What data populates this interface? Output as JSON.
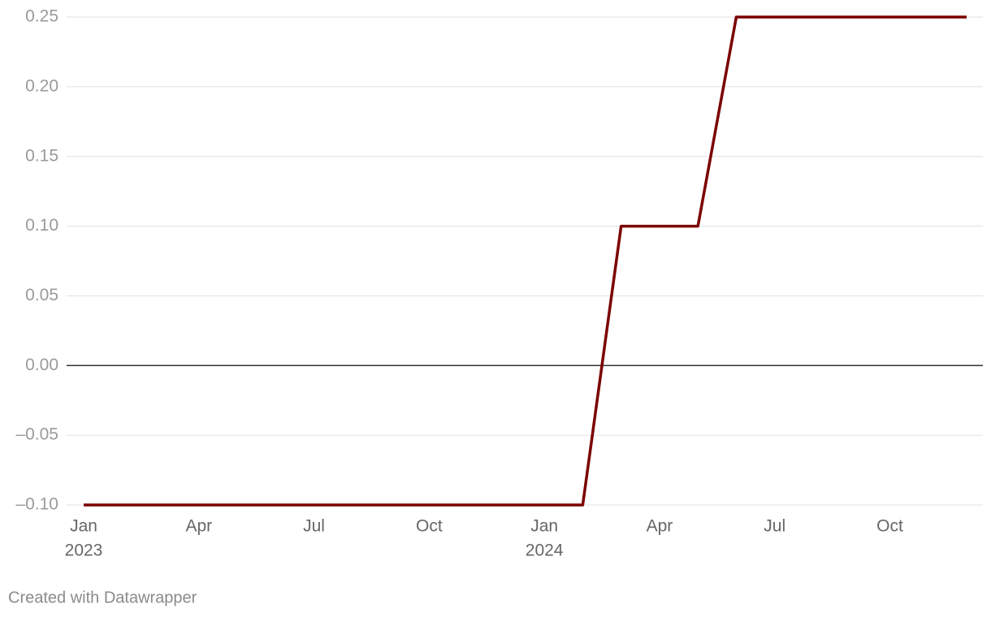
{
  "chart_data": {
    "type": "line",
    "x": [
      "2023-01",
      "2023-02",
      "2023-03",
      "2023-04",
      "2023-05",
      "2023-06",
      "2023-07",
      "2023-08",
      "2023-09",
      "2023-10",
      "2023-11",
      "2023-12",
      "2024-01",
      "2024-02",
      "2024-03",
      "2024-04",
      "2024-05",
      "2024-06",
      "2024-07",
      "2024-08",
      "2024-09",
      "2024-10",
      "2024-11",
      "2024-12"
    ],
    "series": [
      {
        "color": "#7b0000",
        "values": [
          -0.1,
          -0.1,
          -0.1,
          -0.1,
          -0.1,
          -0.1,
          -0.1,
          -0.1,
          -0.1,
          -0.1,
          -0.1,
          -0.1,
          -0.1,
          -0.1,
          0.1,
          0.1,
          0.1,
          0.25,
          0.25,
          0.25,
          0.25,
          0.25,
          0.25,
          0.25
        ]
      }
    ],
    "xlim": [
      "2023-01",
      "2024-12"
    ],
    "xticks": [
      {
        "value": "2023-01",
        "label": [
          "Jan",
          "2023"
        ]
      },
      {
        "value": "2023-04",
        "label": [
          "Apr"
        ]
      },
      {
        "value": "2023-07",
        "label": [
          "Jul"
        ]
      },
      {
        "value": "2023-10",
        "label": [
          "Oct"
        ]
      },
      {
        "value": "2024-01",
        "label": [
          "Jan",
          "2024"
        ]
      },
      {
        "value": "2024-04",
        "label": [
          "Apr"
        ]
      },
      {
        "value": "2024-07",
        "label": [
          "Jul"
        ]
      },
      {
        "value": "2024-10",
        "label": [
          "Oct"
        ]
      }
    ],
    "ylim": [
      -0.1,
      0.25
    ],
    "yticks": [
      0.25,
      {
        "value": 0.2,
        "label": "0.20"
      },
      {
        "value": 0.15,
        "label": "0.15"
      },
      {
        "value": 0.1,
        "label": "0.10"
      },
      {
        "value": 0.05,
        "label": "0.05"
      },
      {
        "value": 0,
        "label": "0.00"
      },
      {
        "value": -0.05,
        "label": "–0.05"
      },
      {
        "value": -0.1,
        "label": "–0.10"
      }
    ],
    "grid": true,
    "footer": "Created with Datawrapper"
  }
}
